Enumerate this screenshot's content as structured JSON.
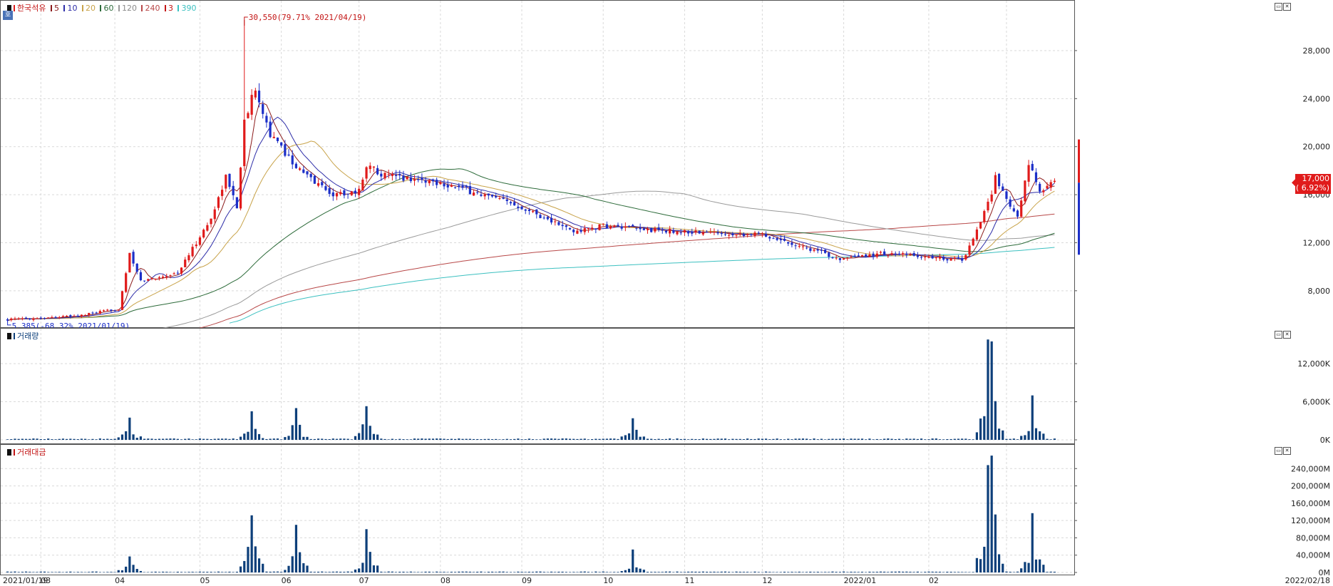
{
  "header": {
    "stock_name": "한국석유",
    "ma_periods": [
      "5",
      "10",
      "20",
      "60",
      "120",
      "240",
      "3",
      "390"
    ],
    "hover_button": "호"
  },
  "colors": {
    "up": "#e01b1b",
    "down": "#1c2fc8",
    "volume": "#0d3f7a",
    "ma5": "#8b1a1a",
    "ma10": "#2d2da8",
    "ma20": "#c8a34a",
    "ma60": "#2d6b3a",
    "ma120": "#9a9a9a",
    "ma240": "#b84848",
    "ma390": "#3cc0c0"
  },
  "panels": {
    "volume_title": "거래량",
    "amount_title": "거래대금"
  },
  "annotations": {
    "high": "30,550(79.71% 2021/04/19)",
    "low": "5,385(-68.32% 2021/01/19)"
  },
  "current_price": {
    "price": "17,000",
    "change": "( 6.92%)"
  },
  "chart_data": [
    {
      "type": "candlestick",
      "title": "한국석유",
      "y_ticks": [
        "8,000",
        "12,000",
        "16,000",
        "20,000",
        "24,000",
        "28,000"
      ],
      "ylim": [
        5200,
        31500
      ],
      "x_ticks": [
        "2021/01/19",
        "03",
        "04",
        "05",
        "06",
        "07",
        "08",
        "09",
        "10",
        "11",
        "12",
        "2022/01",
        "02",
        "2022/02/18"
      ],
      "keypoints": {
        "x": [
          "2021-01-19",
          "2021-02-15",
          "2021-03-02",
          "2021-03-05",
          "2021-03-10",
          "2021-03-24",
          "2021-04-06",
          "2021-04-12",
          "2021-04-15",
          "2021-04-19",
          "2021-04-22",
          "2021-04-28",
          "2021-05-04",
          "2021-05-10",
          "2021-05-21",
          "2021-06-01",
          "2021-06-03",
          "2021-06-10",
          "2021-07-01",
          "2021-08-02",
          "2021-08-20",
          "2021-09-01",
          "2021-09-15",
          "2021-10-01",
          "2021-11-01",
          "2021-12-01",
          "2021-12-15",
          "2022-01-14",
          "2022-01-17",
          "2022-01-26",
          "2022-01-27",
          "2022-02-04",
          "2022-02-09",
          "2022-02-14",
          "2022-02-18"
        ],
        "close": [
          5600,
          5900,
          6500,
          11000,
          8800,
          9500,
          14000,
          17500,
          15000,
          22000,
          25000,
          21000,
          19500,
          18000,
          16000,
          16300,
          18500,
          17600,
          17000,
          15000,
          12900,
          13400,
          13100,
          12900,
          12700,
          10600,
          11100,
          10600,
          11000,
          16000,
          17500,
          14000,
          18500,
          16300,
          17000
        ]
      },
      "moving_averages": [
        "5",
        "10",
        "20",
        "60",
        "120",
        "240",
        "390"
      ]
    },
    {
      "type": "bar",
      "title": "거래량",
      "y_ticks": [
        "0K",
        "6,000K",
        "12,000K"
      ],
      "note": "daily volume, thousands of shares",
      "peaks": {
        "x": [
          "2021-03-05",
          "2021-04-21",
          "2021-05-07",
          "2021-06-03",
          "2021-09-13",
          "2022-01-25",
          "2022-01-26",
          "2022-02-10"
        ],
        "values": [
          3500,
          4500,
          5000,
          5300,
          3400,
          15800,
          15500,
          7000
        ]
      }
    },
    {
      "type": "bar",
      "title": "거래대금",
      "y_ticks": [
        "0M",
        "40,000M",
        "80,000M",
        "120,000M",
        "160,000M",
        "200,000M",
        "240,000M"
      ],
      "peaks": {
        "x": [
          "2021-03-05",
          "2021-04-21",
          "2021-05-07",
          "2021-06-03",
          "2021-09-13",
          "2022-01-25",
          "2022-01-26",
          "2022-02-10"
        ],
        "values": [
          37000,
          132000,
          110000,
          100000,
          53000,
          248000,
          270000,
          137000
        ]
      }
    }
  ]
}
